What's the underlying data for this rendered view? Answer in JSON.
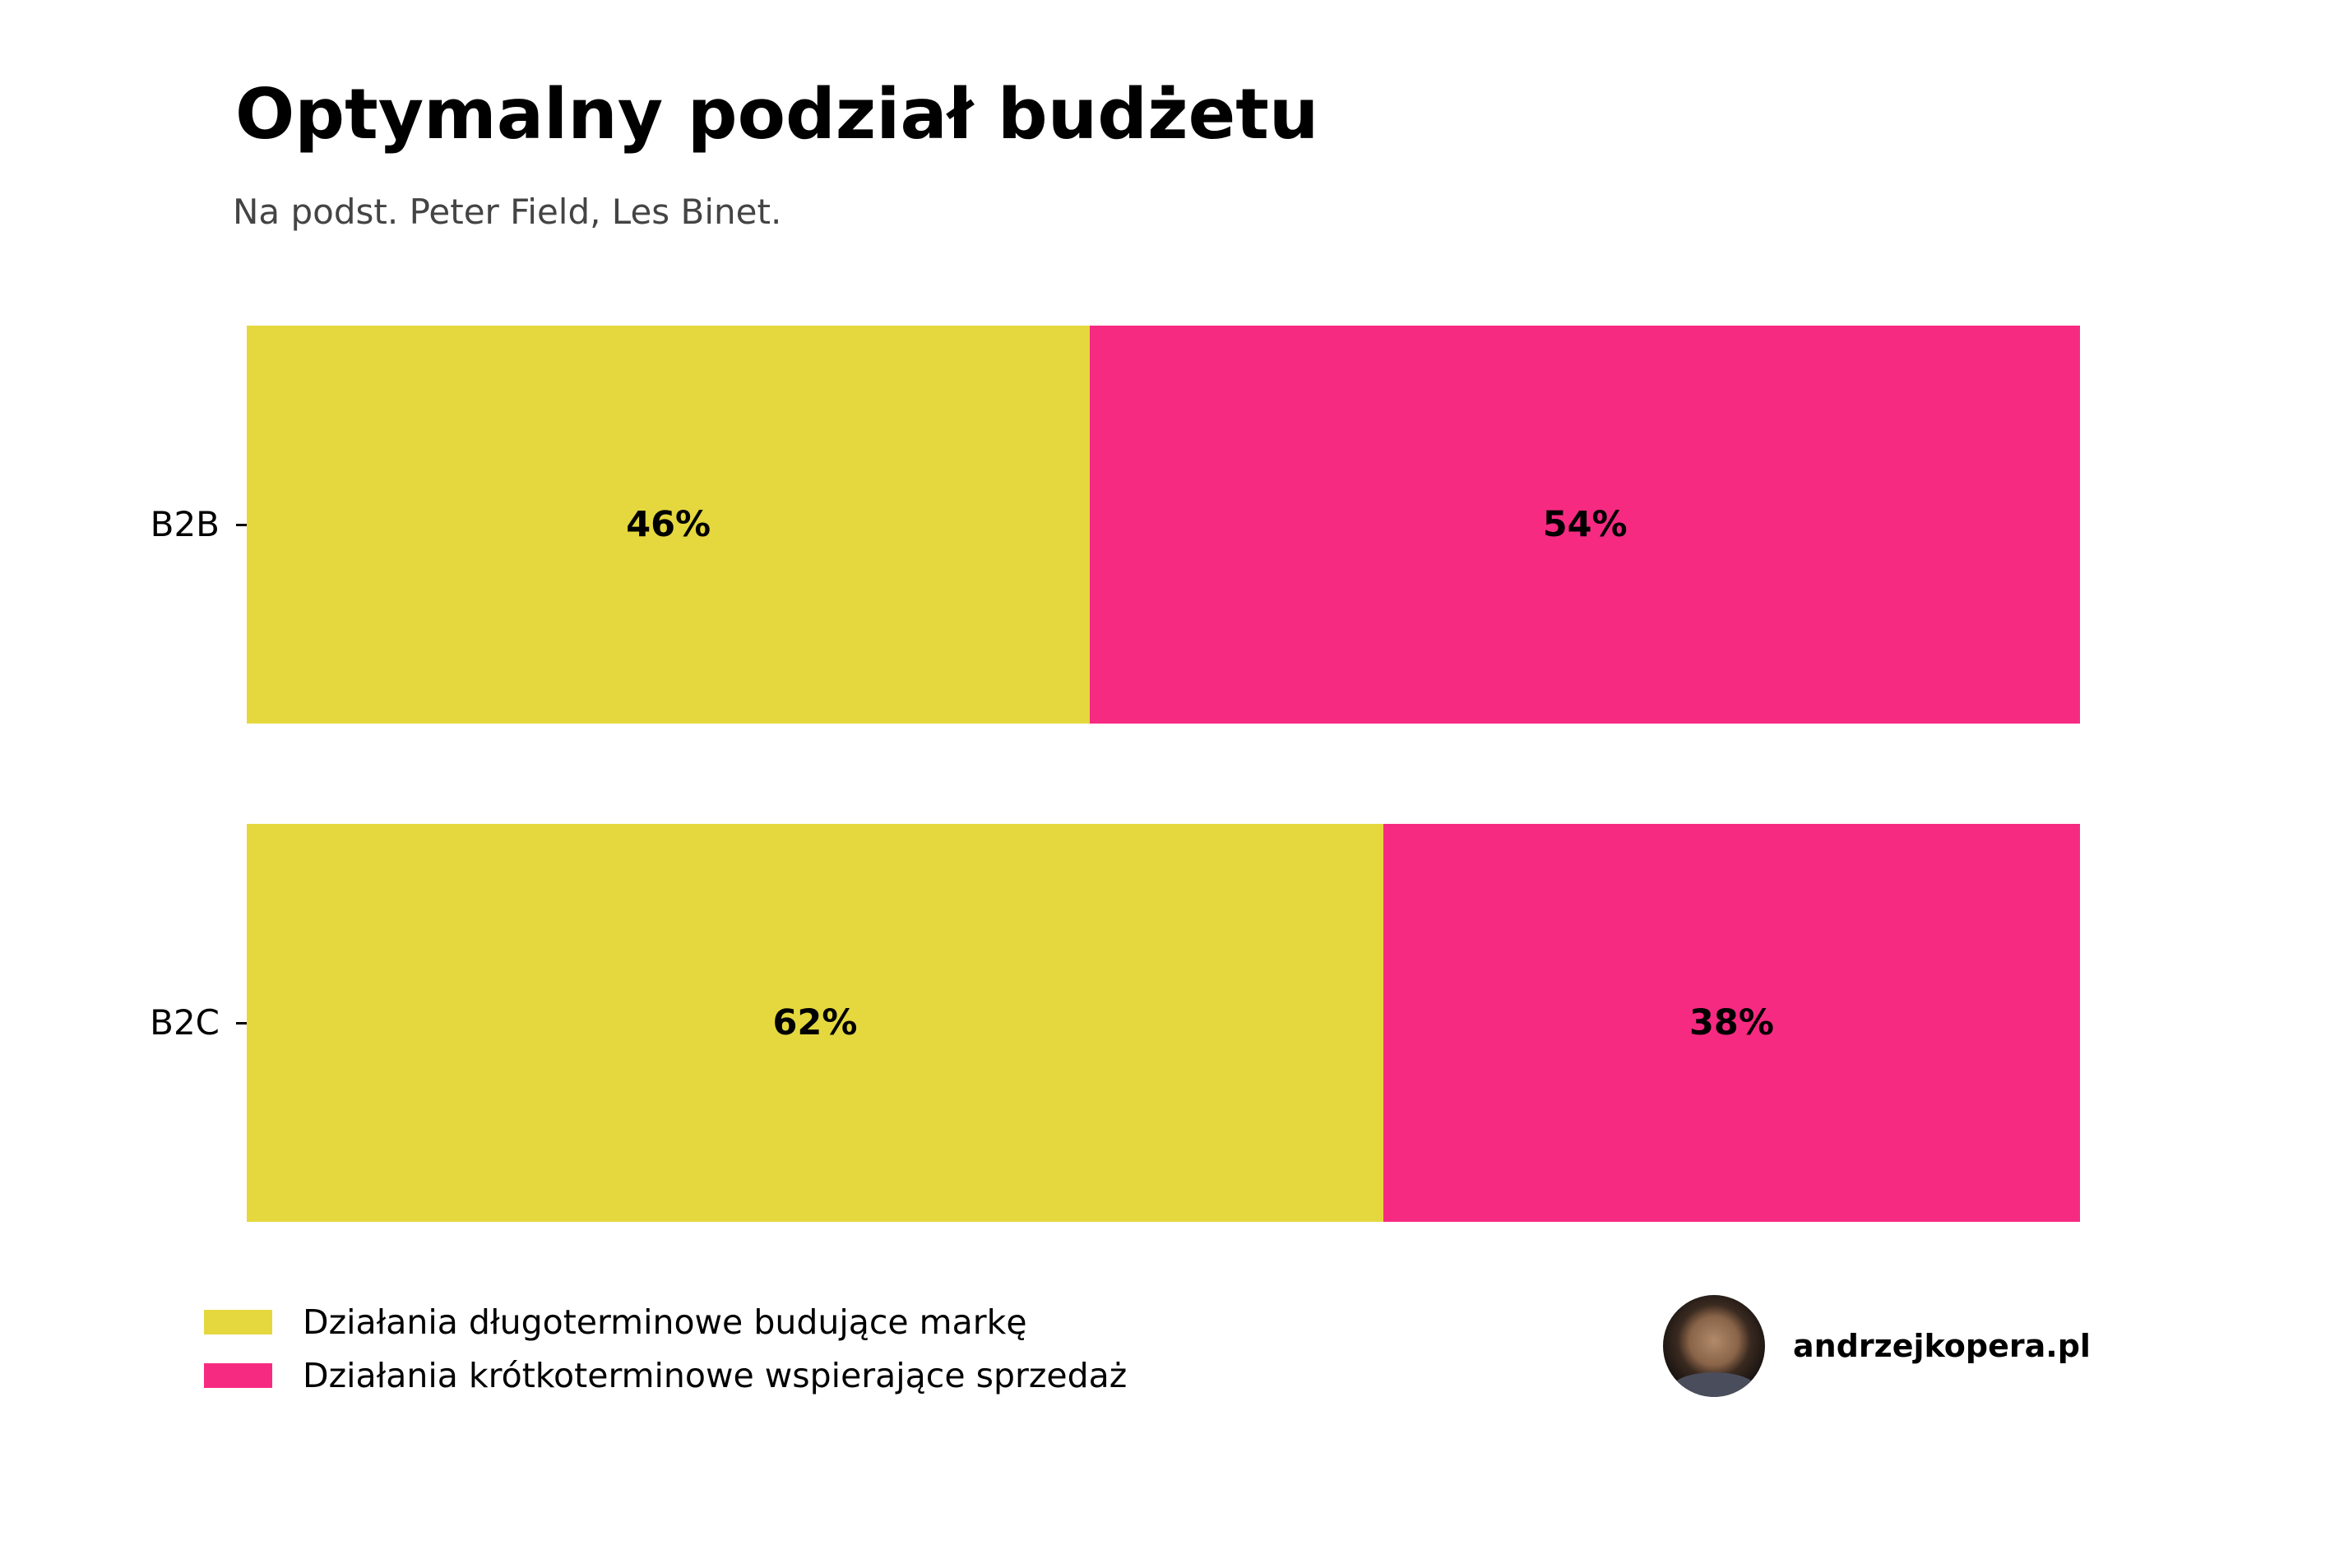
{
  "header": {
    "title": "Optymalny podział budżetu",
    "subtitle": "Na podst. Peter Field, Les Binet."
  },
  "colors": {
    "brand_building": "#E5D83F",
    "sales_activation": "#F72A82"
  },
  "bars": [
    {
      "category": "B2B",
      "segments": [
        {
          "value": 46,
          "label": "46%"
        },
        {
          "value": 54,
          "label": "54%"
        }
      ]
    },
    {
      "category": "B2C",
      "segments": [
        {
          "value": 62,
          "label": "62%"
        },
        {
          "value": 38,
          "label": "38%"
        }
      ]
    }
  ],
  "legend": [
    {
      "label": "Działania długoterminowe budujące markę",
      "color": "#E5D83F"
    },
    {
      "label": "Działania krótkoterminowe wspierające sprzedaż",
      "color": "#F72A82"
    }
  ],
  "brand": {
    "avatar_icon": "author-photo",
    "text": "andrzejkopera.pl"
  },
  "chart_data": {
    "type": "bar",
    "orientation": "horizontal",
    "stacked": true,
    "title": "Optymalny podział budżetu",
    "subtitle": "Na podst. Peter Field, Les Binet.",
    "categories": [
      "B2B",
      "B2C"
    ],
    "series": [
      {
        "name": "Działania długoterminowe budujące markę",
        "values": [
          46,
          62
        ],
        "color": "#E5D83F"
      },
      {
        "name": "Działania krótkoterminowe wspierające sprzedaż",
        "values": [
          54,
          38
        ],
        "color": "#F72A82"
      }
    ],
    "data_labels": [
      [
        "46%",
        "54%"
      ],
      [
        "62%",
        "38%"
      ]
    ],
    "xlabel": "",
    "ylabel": "",
    "xlim": [
      0,
      100
    ],
    "grid": false,
    "legend_position": "bottom-left"
  }
}
